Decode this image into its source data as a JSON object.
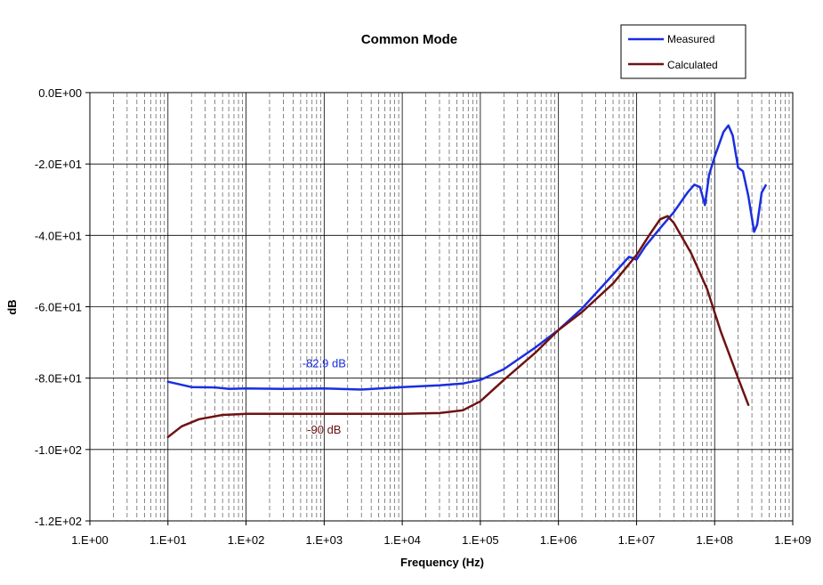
{
  "chart_data": {
    "type": "line",
    "title": "Common Mode",
    "xlabel": "Frequency (Hz)",
    "ylabel": "dB",
    "x_scale": "log",
    "xlim": [
      1,
      1000000000
    ],
    "ylim": [
      -120,
      0
    ],
    "x_ticks": [
      "1.E+00",
      "1.E+01",
      "1.E+02",
      "1.E+03",
      "1.E+04",
      "1.E+05",
      "1.E+06",
      "1.E+07",
      "1.E+08",
      "1.E+09"
    ],
    "y_ticks": [
      "0.0E+00",
      "-2.0E+01",
      "-4.0E+01",
      "-6.0E+01",
      "-8.0E+01",
      "-1.0E+02",
      "-1.2E+02"
    ],
    "grid": true,
    "legend_position": "top-right",
    "series": [
      {
        "name": "Measured",
        "color": "#1a2ee0",
        "points": [
          [
            10,
            -81
          ],
          [
            20,
            -82.5
          ],
          [
            40,
            -82.6
          ],
          [
            60,
            -83
          ],
          [
            100,
            -82.9
          ],
          [
            300,
            -83
          ],
          [
            1000,
            -82.9
          ],
          [
            3000,
            -83.2
          ],
          [
            10000,
            -82.5
          ],
          [
            30000,
            -82
          ],
          [
            60000,
            -81.5
          ],
          [
            100000,
            -80.5
          ],
          [
            200000,
            -77.5
          ],
          [
            500000,
            -71.5
          ],
          [
            1000000,
            -66.5
          ],
          [
            2000000,
            -60.5
          ],
          [
            5000000,
            -51
          ],
          [
            8000000,
            -46
          ],
          [
            10000000,
            -46.8
          ],
          [
            13000000,
            -43
          ],
          [
            20000000,
            -38
          ],
          [
            30000000,
            -33.5
          ],
          [
            45000000,
            -28
          ],
          [
            55000000,
            -25.8
          ],
          [
            65000000,
            -26.5
          ],
          [
            75000000,
            -31.5
          ],
          [
            85000000,
            -23
          ],
          [
            100000000,
            -18
          ],
          [
            130000000,
            -11
          ],
          [
            150000000,
            -9.2
          ],
          [
            170000000,
            -12
          ],
          [
            200000000,
            -21
          ],
          [
            230000000,
            -22
          ],
          [
            270000000,
            -29
          ],
          [
            320000000,
            -39
          ],
          [
            350000000,
            -37
          ],
          [
            400000000,
            -28
          ],
          [
            450000000,
            -26
          ]
        ]
      },
      {
        "name": "Calculated",
        "color": "#6e1212",
        "points": [
          [
            10,
            -96.5
          ],
          [
            15,
            -93.5
          ],
          [
            25,
            -91.5
          ],
          [
            50,
            -90.3
          ],
          [
            100,
            -90
          ],
          [
            1000,
            -90
          ],
          [
            10000,
            -90
          ],
          [
            30000,
            -89.8
          ],
          [
            60000,
            -89
          ],
          [
            100000,
            -86.5
          ],
          [
            200000,
            -80.5
          ],
          [
            500000,
            -73
          ],
          [
            1000000,
            -66.5
          ],
          [
            2000000,
            -61.5
          ],
          [
            5000000,
            -53.5
          ],
          [
            10000000,
            -45.5
          ],
          [
            15000000,
            -39.5
          ],
          [
            20000000,
            -35.5
          ],
          [
            25000000,
            -34.6
          ],
          [
            30000000,
            -36.5
          ],
          [
            50000000,
            -45
          ],
          [
            80000000,
            -55
          ],
          [
            120000000,
            -67
          ],
          [
            200000000,
            -80
          ],
          [
            270000000,
            -87.5
          ]
        ]
      }
    ],
    "annotations": [
      {
        "text": "-82.9 dB",
        "x": 1000,
        "y": -77,
        "color": "#1a2ee0"
      },
      {
        "text": "-90 dB",
        "x": 1000,
        "y": -95.5,
        "color": "#6e1212"
      }
    ]
  }
}
